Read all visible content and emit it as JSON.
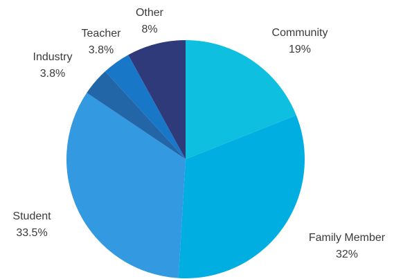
{
  "chart_data": {
    "type": "pie",
    "title": "",
    "legend": "none",
    "slices": [
      {
        "label": "Community",
        "value": 19,
        "value_label": "19%",
        "color": "#0fbfe0"
      },
      {
        "label": "Family Member",
        "value": 32,
        "value_label": "32%",
        "color": "#00aee2"
      },
      {
        "label": "Student",
        "value": 33.5,
        "value_label": "33.5%",
        "color": "#3399e0"
      },
      {
        "label": "Industry",
        "value": 3.8,
        "value_label": "3.8%",
        "color": "#2366a8"
      },
      {
        "label": "Teacher",
        "value": 3.8,
        "value_label": "3.8%",
        "color": "#1977c8"
      },
      {
        "label": "Other",
        "value": 8,
        "value_label": "8%",
        "color": "#2f3a7a"
      }
    ]
  }
}
